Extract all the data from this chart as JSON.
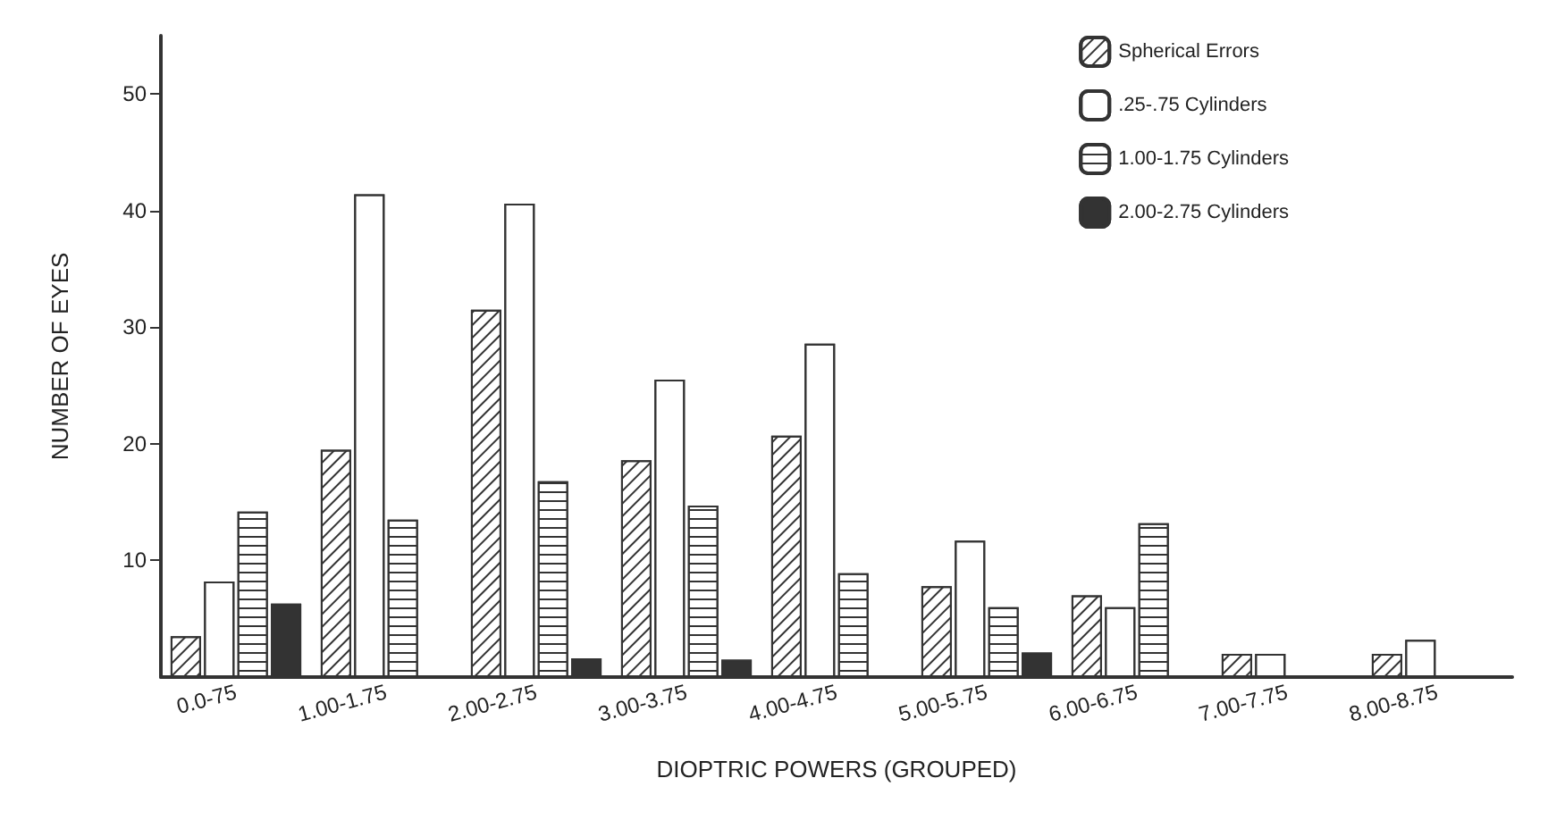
{
  "chart_data": {
    "type": "bar",
    "xlabel": "DIOPTRIC POWERS (GROUPED)",
    "ylabel": "NUMBER OF EYES",
    "categories": [
      "0.0-75",
      "1.00-1.75",
      "2.00-2.75",
      "3.00-3.75",
      "4.00-4.75",
      "5.00-5.75",
      "6.00-6.75",
      "7.00-7.75",
      "8.00-8.75"
    ],
    "series": [
      {
        "name": "Spherical Errors",
        "color": "#ffffff",
        "values": [
          3.5,
          19.5,
          31.5,
          18.6,
          20.7,
          7.8,
          7,
          2,
          2
        ]
      },
      {
        "name": ".25-.75 Cylinders",
        "color": "#ffffff",
        "values": [
          8.2,
          41.4,
          40.6,
          25.5,
          28.6,
          11.7,
          6,
          2,
          3.2
        ]
      },
      {
        "name": "1.00-1.75 Cylinders",
        "color": "#ffffff",
        "values": [
          14.2,
          13.5,
          16.8,
          14.7,
          8.9,
          6,
          13.2,
          null,
          null
        ]
      },
      {
        "name": "2.00-2.75 Cylinders",
        "color": "#333333",
        "values": [
          6.3,
          null,
          1.6,
          1.5,
          null,
          2.1,
          null,
          null,
          null
        ]
      }
    ],
    "ylim": [
      0,
      55
    ],
    "yticks": [
      10,
      20,
      30,
      40,
      50
    ],
    "grid": false,
    "legend": "top right"
  }
}
